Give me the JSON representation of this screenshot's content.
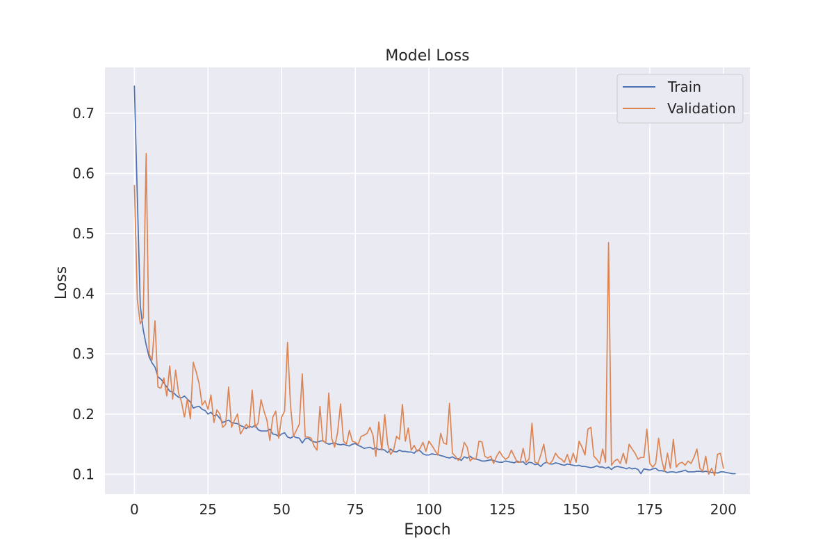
{
  "chart_data": {
    "type": "line",
    "title": "Model Loss",
    "xlabel": "Epoch",
    "ylabel": "Loss",
    "xlim": [
      -10,
      209
    ],
    "ylim": [
      0.067,
      0.776
    ],
    "xticks": [
      0,
      25,
      50,
      75,
      100,
      125,
      150,
      175,
      200
    ],
    "yticks": [
      0.1,
      0.2,
      0.3,
      0.4,
      0.5,
      0.6,
      0.7
    ],
    "grid": true,
    "legend_position": "top-right",
    "series": [
      {
        "name": "Train",
        "color": "#4c72b0",
        "values": [
          0.745,
          0.56,
          0.38,
          0.34,
          0.315,
          0.295,
          0.285,
          0.278,
          0.262,
          0.258,
          0.252,
          0.245,
          0.238,
          0.237,
          0.232,
          0.228,
          0.227,
          0.23,
          0.225,
          0.22,
          0.21,
          0.212,
          0.213,
          0.208,
          0.206,
          0.2,
          0.203,
          0.197,
          0.199,
          0.193,
          0.186,
          0.188,
          0.19,
          0.186,
          0.185,
          0.184,
          0.181,
          0.179,
          0.176,
          0.18,
          0.178,
          0.182,
          0.174,
          0.172,
          0.172,
          0.172,
          0.175,
          0.167,
          0.166,
          0.163,
          0.167,
          0.169,
          0.162,
          0.16,
          0.163,
          0.161,
          0.16,
          0.152,
          0.159,
          0.16,
          0.156,
          0.154,
          0.153,
          0.155,
          0.156,
          0.152,
          0.15,
          0.151,
          0.152,
          0.15,
          0.149,
          0.15,
          0.148,
          0.147,
          0.15,
          0.151,
          0.148,
          0.146,
          0.143,
          0.144,
          0.145,
          0.142,
          0.144,
          0.141,
          0.142,
          0.14,
          0.136,
          0.142,
          0.138,
          0.137,
          0.14,
          0.138,
          0.138,
          0.137,
          0.137,
          0.135,
          0.14,
          0.139,
          0.134,
          0.132,
          0.132,
          0.134,
          0.133,
          0.133,
          0.131,
          0.13,
          0.128,
          0.127,
          0.129,
          0.126,
          0.126,
          0.123,
          0.129,
          0.127,
          0.13,
          0.126,
          0.125,
          0.124,
          0.122,
          0.122,
          0.123,
          0.124,
          0.123,
          0.121,
          0.12,
          0.12,
          0.122,
          0.121,
          0.12,
          0.119,
          0.122,
          0.12,
          0.121,
          0.116,
          0.12,
          0.119,
          0.116,
          0.117,
          0.113,
          0.118,
          0.12,
          0.117,
          0.117,
          0.119,
          0.118,
          0.116,
          0.115,
          0.117,
          0.116,
          0.115,
          0.114,
          0.115,
          0.113,
          0.113,
          0.112,
          0.111,
          0.112,
          0.114,
          0.112,
          0.112,
          0.11,
          0.112,
          0.108,
          0.112,
          0.113,
          0.112,
          0.111,
          0.109,
          0.111,
          0.109,
          0.11,
          0.108,
          0.101,
          0.109,
          0.108,
          0.107,
          0.109,
          0.11,
          0.106,
          0.106,
          0.105,
          0.103,
          0.104,
          0.104,
          0.103,
          0.104,
          0.105,
          0.107,
          0.104,
          0.104,
          0.104,
          0.105,
          0.105,
          0.104,
          0.105,
          0.104,
          0.103,
          0.103,
          0.102,
          0.104,
          0.104,
          0.103,
          0.102,
          0.101,
          0.101
        ]
      },
      {
        "name": "Validation",
        "color": "#dd8452",
        "values": [
          0.58,
          0.39,
          0.35,
          0.36,
          0.633,
          0.3,
          0.29,
          0.355,
          0.245,
          0.243,
          0.26,
          0.23,
          0.28,
          0.225,
          0.273,
          0.235,
          0.22,
          0.195,
          0.225,
          0.192,
          0.286,
          0.27,
          0.25,
          0.215,
          0.222,
          0.208,
          0.232,
          0.186,
          0.207,
          0.2,
          0.178,
          0.183,
          0.245,
          0.178,
          0.19,
          0.2,
          0.167,
          0.175,
          0.183,
          0.177,
          0.24,
          0.178,
          0.185,
          0.224,
          0.205,
          0.19,
          0.156,
          0.195,
          0.205,
          0.16,
          0.195,
          0.205,
          0.319,
          0.215,
          0.163,
          0.173,
          0.183,
          0.267,
          0.162,
          0.162,
          0.16,
          0.147,
          0.14,
          0.213,
          0.155,
          0.153,
          0.235,
          0.16,
          0.145,
          0.17,
          0.217,
          0.155,
          0.15,
          0.173,
          0.155,
          0.153,
          0.15,
          0.163,
          0.165,
          0.168,
          0.178,
          0.165,
          0.13,
          0.187,
          0.14,
          0.199,
          0.15,
          0.133,
          0.14,
          0.163,
          0.158,
          0.216,
          0.155,
          0.177,
          0.14,
          0.148,
          0.138,
          0.143,
          0.153,
          0.138,
          0.155,
          0.148,
          0.14,
          0.132,
          0.168,
          0.152,
          0.15,
          0.218,
          0.135,
          0.13,
          0.123,
          0.13,
          0.153,
          0.145,
          0.122,
          0.127,
          0.125,
          0.155,
          0.154,
          0.13,
          0.127,
          0.13,
          0.118,
          0.13,
          0.138,
          0.13,
          0.125,
          0.128,
          0.14,
          0.13,
          0.12,
          0.12,
          0.143,
          0.12,
          0.125,
          0.185,
          0.12,
          0.118,
          0.132,
          0.15,
          0.12,
          0.117,
          0.123,
          0.135,
          0.128,
          0.125,
          0.12,
          0.133,
          0.118,
          0.135,
          0.12,
          0.155,
          0.145,
          0.132,
          0.175,
          0.178,
          0.13,
          0.125,
          0.118,
          0.142,
          0.12,
          0.485,
          0.115,
          0.122,
          0.125,
          0.118,
          0.135,
          0.118,
          0.15,
          0.142,
          0.135,
          0.125,
          0.128,
          0.128,
          0.175,
          0.118,
          0.112,
          0.118,
          0.16,
          0.125,
          0.105,
          0.135,
          0.11,
          0.158,
          0.112,
          0.118,
          0.12,
          0.115,
          0.122,
          0.118,
          0.128,
          0.142,
          0.11,
          0.105,
          0.13,
          0.1,
          0.11,
          0.098,
          0.133,
          0.135,
          0.11
        ]
      }
    ]
  }
}
